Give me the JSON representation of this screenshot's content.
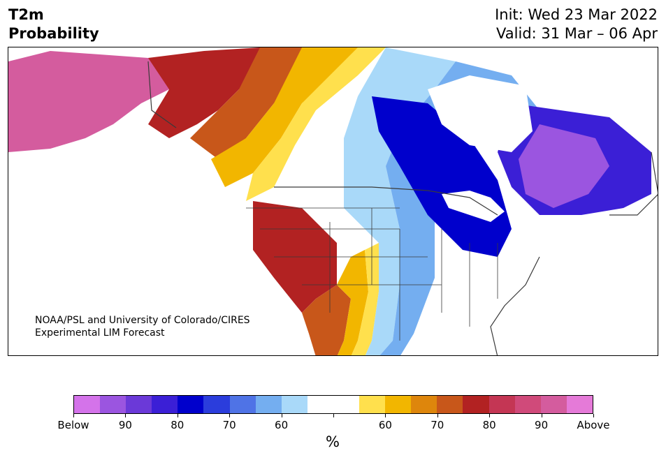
{
  "header": {
    "title_line1": "T2m",
    "title_line2": "Probability",
    "init_line": "Init: Wed 23 Mar 2022",
    "valid_line": "Valid: 31 Mar – 06 Apr"
  },
  "map": {
    "credit_line1": "NOAA/PSL and University of Colorado/CIRES",
    "credit_line2": "Experimental LIM Forecast",
    "colors": {
      "below_90": "#9b55e0",
      "below_80": "#3b1fd6",
      "below_70": "#0000cc",
      "below_60": "#5ba0ee",
      "below_50": "#a9d9f9",
      "above_50": "#ffe04d",
      "above_60": "#f2b600",
      "above_70": "#c8571a",
      "above_80": "#b22222",
      "above_90": "#d45c9e",
      "border": "#3a3a3a"
    }
  },
  "colorbar": {
    "colors": [
      "#d473ea",
      "#9b55e0",
      "#6b39d8",
      "#3b1fd6",
      "#0000cc",
      "#2b3ddc",
      "#4f73e6",
      "#74aef0",
      "#a9d9f9",
      "#ffffff",
      "#ffffff",
      "#ffe04d",
      "#f2b600",
      "#de860c",
      "#c8571a",
      "#b22222",
      "#c43654",
      "#d04a7a",
      "#d45c9e",
      "#e57ad8"
    ],
    "tick_labels": [
      "Below",
      "90",
      "80",
      "70",
      "60",
      "",
      "60",
      "70",
      "80",
      "90",
      "Above"
    ],
    "unit": "%"
  }
}
